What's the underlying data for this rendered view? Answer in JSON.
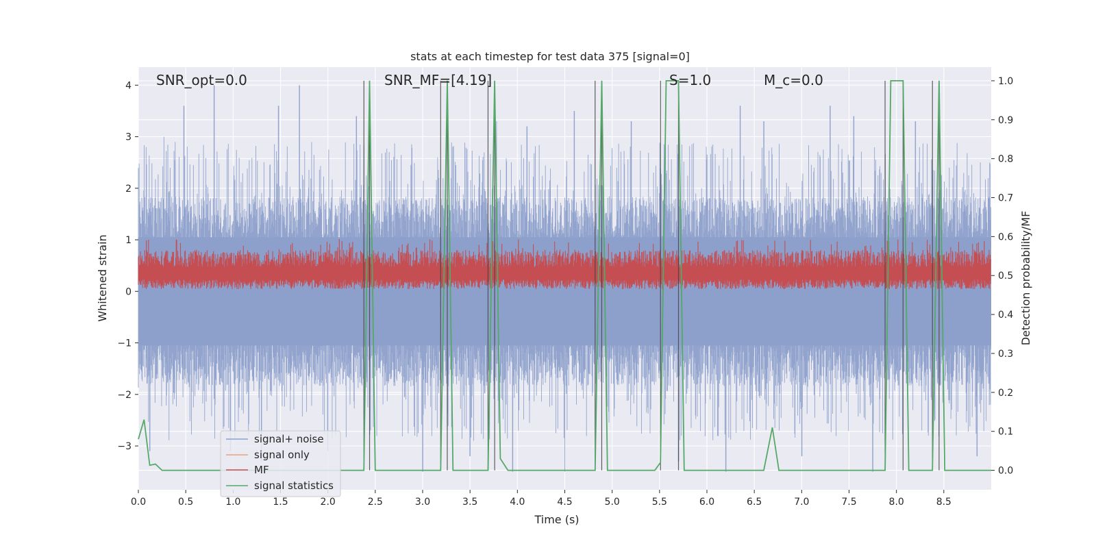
{
  "chart_data": {
    "type": "line",
    "title": "stats at each timestep for test data 375 [signal=0]",
    "xlabel": "Time (s)",
    "ylabel": "Whitened strain",
    "y2label": "Detection probability/MF",
    "xlim": [
      0.0,
      9.0
    ],
    "ylim": [
      -3.85,
      4.35
    ],
    "y2lim": [
      -0.05,
      1.035
    ],
    "x_ticks": [
      "0.0",
      "0.5",
      "1.0",
      "1.5",
      "2.0",
      "2.5",
      "3.0",
      "3.5",
      "4.0",
      "4.5",
      "5.0",
      "5.5",
      "6.0",
      "6.5",
      "7.0",
      "7.5",
      "8.0",
      "8.5"
    ],
    "y_ticks": [
      "−3",
      "−2",
      "−1",
      "0",
      "1",
      "2",
      "3",
      "4"
    ],
    "y2_ticks": [
      "0.0",
      "0.1",
      "0.2",
      "0.3",
      "0.4",
      "0.5",
      "0.6",
      "0.7",
      "0.8",
      "0.9",
      "1.0"
    ],
    "grid": true,
    "legend_position": "lower-left",
    "annotations": {
      "snr_opt": "SNR_opt=0.0",
      "snr_mf": "SNR_MF=[4.19]",
      "s": "S=1.0",
      "mc": "M_c=0.0"
    },
    "vertical_lines_x": [
      2.38,
      2.44,
      3.19,
      3.26,
      3.69,
      3.76,
      4.82,
      4.89,
      5.51,
      5.7,
      7.88,
      8.07,
      8.38,
      8.45
    ],
    "series": [
      {
        "name": "signal+ noise",
        "color": "#8da0cb",
        "envelope": {
          "amplitude_typical": 1.6,
          "peaks": [
            [
              0.27,
              3.0
            ],
            [
              0.48,
              3.6
            ],
            [
              0.8,
              4.0
            ],
            [
              1.48,
              3.6
            ],
            [
              1.7,
              4.0
            ],
            [
              2.3,
              3.4
            ],
            [
              3.78,
              3.3
            ],
            [
              4.1,
              3.2
            ],
            [
              4.6,
              3.5
            ],
            [
              5.2,
              3.3
            ],
            [
              6.35,
              3.6
            ],
            [
              6.6,
              3.3
            ],
            [
              7.3,
              3.6
            ],
            [
              7.55,
              3.4
            ],
            [
              8.2,
              3.3
            ]
          ],
          "troughs": [
            [
              0.12,
              -3.1
            ],
            [
              0.97,
              -3.1
            ],
            [
              1.3,
              -3.3
            ],
            [
              2.0,
              -3.1
            ],
            [
              3.0,
              -3.5
            ],
            [
              3.5,
              -3.2
            ],
            [
              3.95,
              -3.5
            ],
            [
              4.5,
              -3.5
            ],
            [
              5.7,
              -3.3
            ],
            [
              6.2,
              -3.5
            ],
            [
              7.0,
              -3.2
            ],
            [
              7.75,
              -3.5
            ],
            [
              8.85,
              -3.2
            ]
          ]
        }
      },
      {
        "name": "signal only",
        "color": "#e8a27e",
        "values": []
      },
      {
        "name": "MF",
        "color": "#c44e52",
        "axis": "right",
        "center": 0.5,
        "band": [
          0.475,
          0.555
        ]
      },
      {
        "name": "signal statistics",
        "color": "#55a868",
        "axis": "right",
        "x": [
          0.0,
          0.06,
          0.12,
          0.18,
          0.25,
          2.38,
          2.44,
          2.5,
          3.19,
          3.26,
          3.32,
          3.69,
          3.76,
          3.82,
          3.9,
          4.82,
          4.89,
          4.95,
          5.45,
          5.51,
          5.57,
          5.63,
          5.7,
          5.76,
          6.6,
          6.69,
          6.76,
          6.8,
          7.88,
          7.94,
          8.07,
          8.13,
          8.38,
          8.45,
          8.51,
          9.0
        ],
        "y": [
          0.08,
          0.13,
          0.013,
          0.016,
          0.0,
          0.0,
          1.0,
          0.0,
          0.0,
          1.0,
          0.0,
          0.0,
          1.0,
          0.03,
          0.0,
          0.0,
          1.0,
          0.0,
          0.0,
          0.02,
          1.0,
          1.0,
          1.0,
          0.0,
          0.0,
          0.11,
          0.0,
          0.0,
          0.0,
          1.0,
          1.0,
          0.0,
          0.0,
          1.0,
          0.0,
          0.0
        ]
      }
    ]
  }
}
